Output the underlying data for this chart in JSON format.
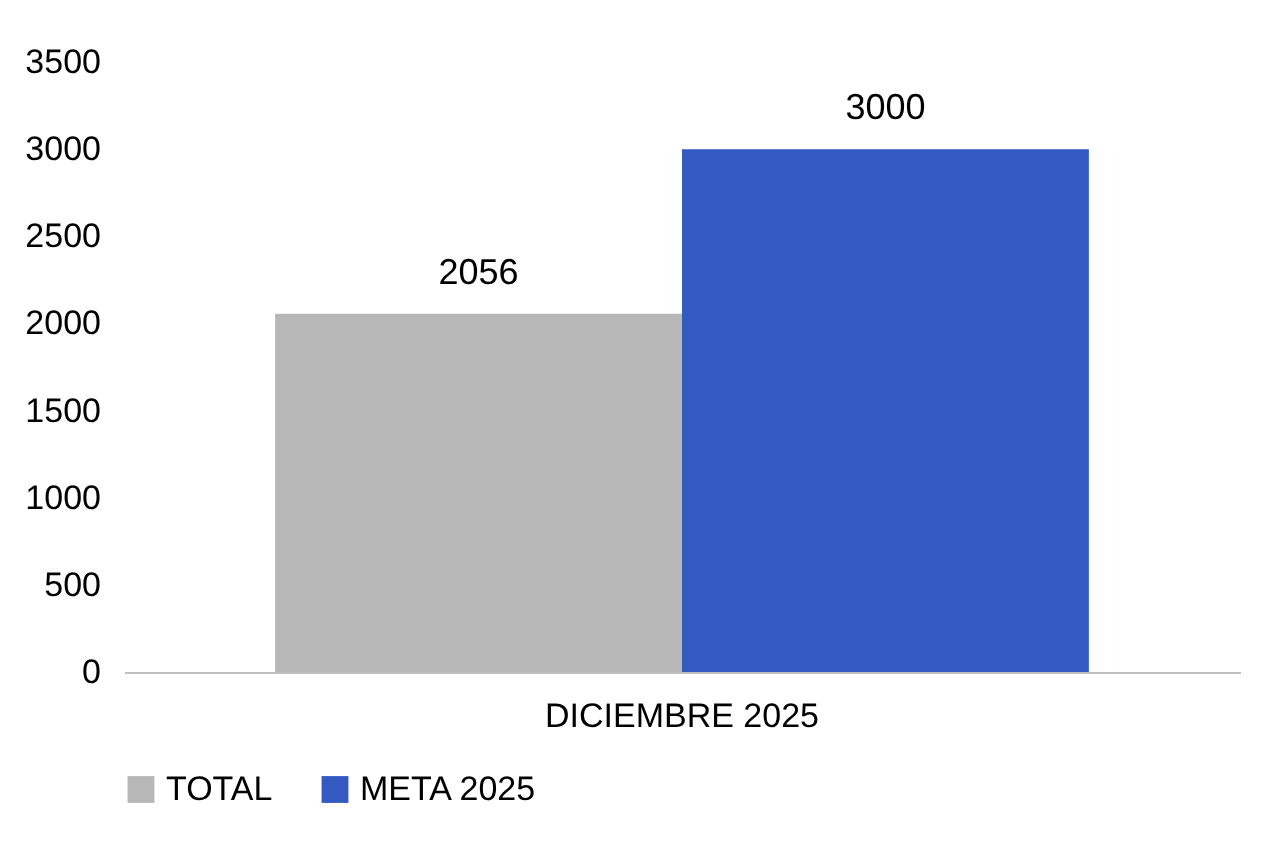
{
  "chart_data": {
    "type": "bar",
    "categories": [
      "DICIEMBRE 2025"
    ],
    "series": [
      {
        "name": "TOTAL",
        "color": "#b7b7b7",
        "values": [
          2056
        ]
      },
      {
        "name": "META 2025",
        "color": "#3459c0",
        "values": [
          3000
        ]
      }
    ],
    "ylim": [
      0,
      3500
    ],
    "yticks": [
      0,
      500,
      1000,
      1500,
      2000,
      2500,
      3000,
      3500
    ],
    "grid": false,
    "legend": "bottom",
    "data_labels": true
  }
}
